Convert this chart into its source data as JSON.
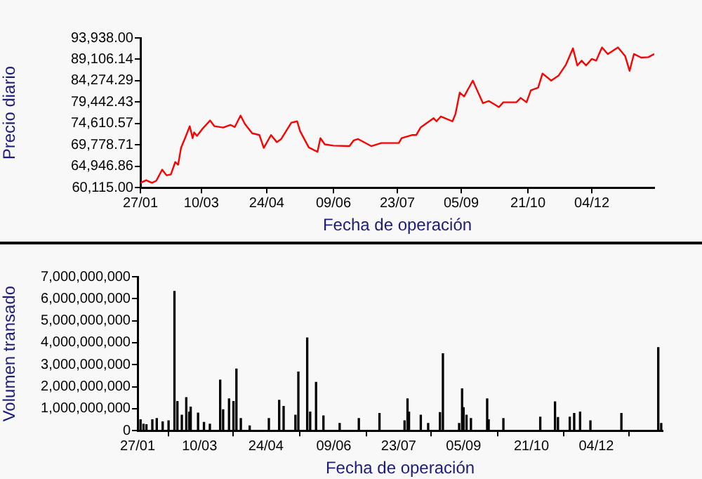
{
  "chart_data": [
    {
      "type": "line",
      "xlabel": "Fecha de operación",
      "ylabel": "Precio diario",
      "grid": false,
      "legend": false,
      "marker": "none",
      "line_style": "solid",
      "xlim": [
        "2001-01-27",
        "2002-01-16"
      ],
      "xticks": [
        {
          "value": "2001-01-27",
          "label": "27/01"
        },
        {
          "value": "2001-03-10",
          "label": "10/03"
        },
        {
          "value": "2001-04-24",
          "label": "24/04"
        },
        {
          "value": "2001-06-09",
          "label": "09/06"
        },
        {
          "value": "2001-07-23",
          "label": "23/07"
        },
        {
          "value": "2001-09-05",
          "label": "05/09"
        },
        {
          "value": "2001-10-21",
          "label": "21/10"
        },
        {
          "value": "2001-12-04",
          "label": "04/12"
        }
      ],
      "ylim": [
        60115,
        93938
      ],
      "yticks": [
        {
          "value": 60115,
          "label": "60,115.00"
        },
        {
          "value": 64946.86,
          "label": "64,946.86"
        },
        {
          "value": 69778.71,
          "label": "69,778.71"
        },
        {
          "value": 74610.57,
          "label": "74,610.57"
        },
        {
          "value": 79442.43,
          "label": "79,442.43"
        },
        {
          "value": 84274.29,
          "label": "84,274.29"
        },
        {
          "value": 89106.14,
          "label": "89,106.14"
        },
        {
          "value": 93938,
          "label": "93,938.00"
        }
      ],
      "x": [
        "2001-01-27",
        "2001-01-31",
        "2001-02-04",
        "2001-02-07",
        "2001-02-11",
        "2001-02-14",
        "2001-02-17",
        "2001-02-20",
        "2001-02-22",
        "2001-02-24",
        "2001-02-27",
        "2001-03-02",
        "2001-03-04",
        "2001-03-05",
        "2001-03-07",
        "2001-03-11",
        "2001-03-16",
        "2001-03-19",
        "2001-03-25",
        "2001-03-30",
        "2001-04-02",
        "2001-04-06",
        "2001-04-09",
        "2001-04-14",
        "2001-04-19",
        "2001-04-22",
        "2001-04-27",
        "2001-05-01",
        "2001-05-04",
        "2001-05-11",
        "2001-05-15",
        "2001-05-17",
        "2001-05-23",
        "2001-05-29",
        "2001-05-31",
        "2001-06-03",
        "2001-06-09",
        "2001-06-20",
        "2001-06-23",
        "2001-06-26",
        "2001-07-05",
        "2001-07-12",
        "2001-07-24",
        "2001-07-26",
        "2001-08-02",
        "2001-08-05",
        "2001-08-08",
        "2001-08-17",
        "2001-08-19",
        "2001-08-22",
        "2001-08-30",
        "2001-09-01",
        "2001-09-04",
        "2001-09-07",
        "2001-09-13",
        "2001-09-16",
        "2001-09-20",
        "2001-09-24",
        "2001-10-01",
        "2001-10-04",
        "2001-10-13",
        "2001-10-16",
        "2001-10-20",
        "2001-10-23",
        "2001-10-28",
        "2001-10-31",
        "2001-11-06",
        "2001-11-11",
        "2001-11-16",
        "2001-11-21",
        "2001-11-24",
        "2001-11-27",
        "2001-11-30",
        "2001-12-04",
        "2001-12-07",
        "2001-12-11",
        "2001-12-15",
        "2001-12-22",
        "2001-12-27",
        "2001-12-30",
        "2002-01-02",
        "2002-01-07",
        "2002-01-12",
        "2002-01-16"
      ],
      "series": [
        {
          "color": "#ff0000",
          "values": [
            61200,
            61800,
            61200,
            61700,
            64200,
            62900,
            63100,
            65900,
            65300,
            69100,
            71500,
            74000,
            71300,
            72600,
            71800,
            73500,
            75300,
            74000,
            73700,
            74300,
            73800,
            76400,
            74500,
            72400,
            72000,
            69100,
            72000,
            70400,
            71100,
            74800,
            75100,
            72900,
            69200,
            68200,
            71300,
            69900,
            69600,
            69500,
            70800,
            71100,
            69500,
            70200,
            70200,
            71300,
            72000,
            72000,
            73700,
            75800,
            75100,
            76200,
            75100,
            76700,
            81600,
            80700,
            84300,
            82100,
            79200,
            79700,
            78300,
            79400,
            79400,
            80400,
            79400,
            82100,
            82700,
            85900,
            84300,
            85400,
            87800,
            91600,
            87700,
            88800,
            87700,
            89200,
            88800,
            91800,
            90300,
            91800,
            89800,
            86500,
            90300,
            89500,
            89600,
            90300
          ]
        }
      ]
    },
    {
      "type": "bar",
      "xlabel": "Fecha de operación",
      "ylabel": "Volumen transado",
      "grid": false,
      "legend": false,
      "xlim": [
        "2001-01-27",
        "2002-01-18"
      ],
      "xticks": [
        {
          "value": "2001-01-27",
          "label": "27/01"
        },
        {
          "value": "2001-03-10",
          "label": "10/03"
        },
        {
          "value": "2001-04-24",
          "label": "24/04"
        },
        {
          "value": "2001-06-09",
          "label": "09/06"
        },
        {
          "value": "2001-07-23",
          "label": "23/07"
        },
        {
          "value": "2001-09-05",
          "label": "05/09"
        },
        {
          "value": "2001-10-21",
          "label": "21/10"
        },
        {
          "value": "2001-12-04",
          "label": "04/12"
        }
      ],
      "ylim": [
        0,
        7000000000
      ],
      "yticks": [
        0,
        {
          "value": 1000000000,
          "label": "1,000,000,000"
        },
        {
          "value": 2000000000,
          "label": "2,000,000,000"
        },
        {
          "value": 3000000000,
          "label": "3,000,000,000"
        },
        {
          "value": 4000000000,
          "label": "4,000,000,000"
        },
        {
          "value": 5000000000,
          "label": "5,000,000,000"
        },
        {
          "value": 6000000000,
          "label": "6,000,000,000"
        },
        {
          "value": 7000000000,
          "label": "7,000,000,000"
        }
      ],
      "x": [
        "2001-01-29",
        "2001-01-31",
        "2001-02-02",
        "2001-02-06",
        "2001-02-09",
        "2001-02-13",
        "2001-02-17",
        "2001-02-21",
        "2001-02-23",
        "2001-02-26",
        "2001-03-01",
        "2001-03-03",
        "2001-03-04",
        "2001-03-09",
        "2001-03-13",
        "2001-03-17",
        "2001-03-24",
        "2001-03-26",
        "2001-03-30",
        "2001-04-02",
        "2001-04-04",
        "2001-04-07",
        "2001-04-13",
        "2001-04-26",
        "2001-05-03",
        "2001-05-06",
        "2001-05-14",
        "2001-05-16",
        "2001-05-22",
        "2001-05-24",
        "2001-05-28",
        "2001-06-02",
        "2001-06-13",
        "2001-06-26",
        "2001-07-10",
        "2001-07-27",
        "2001-07-29",
        "2001-07-30",
        "2001-08-07",
        "2001-08-12",
        "2001-08-20",
        "2001-08-22",
        "2001-09-02",
        "2001-09-04",
        "2001-09-05",
        "2001-09-07",
        "2001-09-10",
        "2001-09-21",
        "2001-09-22",
        "2001-10-02",
        "2001-10-27",
        "2001-11-06",
        "2001-11-08",
        "2001-11-16",
        "2001-11-19",
        "2001-11-23",
        "2001-11-30",
        "2001-12-21",
        "2002-01-15",
        "2002-01-17"
      ],
      "series": [
        {
          "color": "#000000",
          "values": [
            500000000,
            300000000,
            270000000,
            500000000,
            550000000,
            400000000,
            450000000,
            6330000000,
            1330000000,
            700000000,
            1500000000,
            850000000,
            1070000000,
            800000000,
            380000000,
            300000000,
            2300000000,
            950000000,
            1450000000,
            1330000000,
            2800000000,
            550000000,
            220000000,
            550000000,
            1380000000,
            1100000000,
            700000000,
            2670000000,
            4220000000,
            850000000,
            2200000000,
            670000000,
            330000000,
            550000000,
            780000000,
            450000000,
            1450000000,
            850000000,
            700000000,
            330000000,
            820000000,
            3500000000,
            330000000,
            1900000000,
            1050000000,
            700000000,
            550000000,
            1450000000,
            500000000,
            550000000,
            620000000,
            1310000000,
            600000000,
            620000000,
            780000000,
            850000000,
            450000000,
            780000000,
            3780000000,
            330000000
          ]
        }
      ]
    }
  ]
}
